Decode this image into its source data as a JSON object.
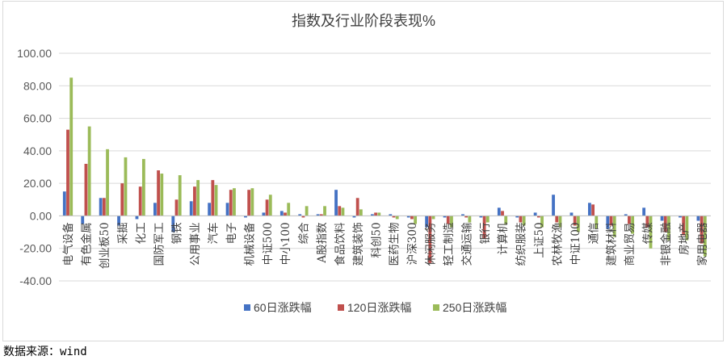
{
  "colors": {
    "s60": "#4472C4",
    "s120": "#C0504D",
    "s250": "#9BBB59",
    "grid": "#d9d9d9",
    "axis": "#bfbfbf"
  },
  "source": "数据来源：wind",
  "chart_data": {
    "type": "bar",
    "title": "指数及行业阶段表现%",
    "xlabel": "",
    "ylabel": "",
    "ylim": [
      -40,
      100
    ],
    "yticks": [
      "100.00",
      "80.00",
      "60.00",
      "40.00",
      "20.00",
      "0.00",
      "-20.00",
      "-40.00"
    ],
    "ytick_values": [
      100,
      80,
      60,
      40,
      20,
      0,
      -20,
      -40
    ],
    "grid": true,
    "legend_position": "bottom",
    "categories": [
      "电气设备",
      "有色金属",
      "创业板50",
      "采掘",
      "化工",
      "国防军工",
      "钢铁",
      "公用事业",
      "汽车",
      "电子",
      "机械设备",
      "中证500",
      "中小100",
      "综合",
      "A股指数",
      "食品饮料",
      "建筑装饰",
      "科创50",
      "医药生物",
      "沪深300",
      "休闲服务",
      "轻工制造",
      "交通运输",
      "银行",
      "计算机",
      "纺织服装",
      "上证50",
      "农林牧渔",
      "中证100",
      "通信",
      "建筑材料",
      "商业贸易",
      "传媒",
      "非银金融",
      "房地产",
      "家用电器"
    ],
    "series": [
      {
        "name": "60日涨跌幅",
        "values": [
          15,
          -5,
          11,
          -6,
          -2,
          8,
          -10,
          9,
          8,
          8,
          -1,
          2,
          3,
          1,
          1,
          16,
          -1,
          1,
          1,
          -1,
          -7,
          -1,
          1,
          -1,
          5,
          -1,
          2,
          13,
          2,
          8,
          -8,
          1,
          5,
          -3,
          -1,
          -3
        ]
      },
      {
        "name": "120日涨跌幅",
        "values": [
          53,
          32,
          11,
          20,
          18,
          28,
          10,
          18,
          22,
          16,
          16,
          10,
          2,
          -1,
          1,
          6,
          11,
          2,
          -1,
          -2,
          -29,
          -5,
          -1,
          -14,
          3,
          -4,
          -1,
          -4,
          -6,
          7,
          -6,
          -5,
          -7,
          -10,
          -12,
          -17
        ]
      },
      {
        "name": "250日涨跌幅",
        "values": [
          85,
          55,
          41,
          36,
          35,
          26,
          25,
          22,
          19,
          17,
          17,
          13,
          8,
          6,
          6,
          5,
          4,
          2,
          -2,
          -5,
          -2,
          -7,
          -4,
          -4,
          -5,
          -6,
          -7,
          -7,
          -10,
          -8,
          -13,
          -11,
          -20,
          -15,
          -15,
          -25
        ]
      }
    ]
  }
}
